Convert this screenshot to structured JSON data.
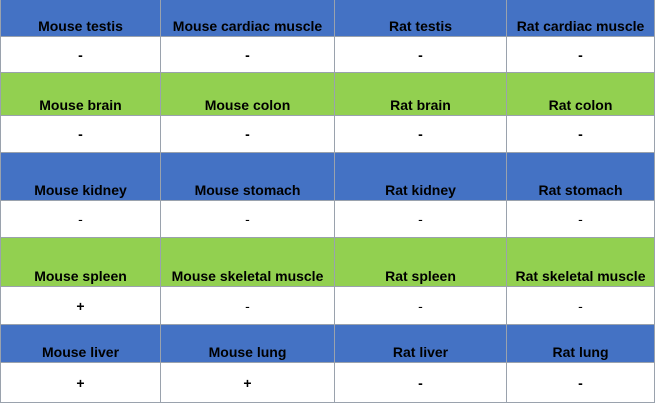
{
  "colors": {
    "blue": "#4472c4",
    "green": "#92d050",
    "white": "#ffffff"
  },
  "table": {
    "groups": [
      {
        "color": "blue",
        "labels": [
          "Mouse testis",
          "Mouse cardiac muscle",
          "Rat testis",
          "Rat cardiac muscle"
        ],
        "values": [
          "-",
          "-",
          "-",
          "-"
        ],
        "bold": [
          true,
          true,
          true,
          true
        ]
      },
      {
        "color": "green",
        "labels": [
          "Mouse brain",
          "Mouse colon",
          "Rat brain",
          "Rat colon"
        ],
        "values": [
          "-",
          "-",
          "-",
          "-"
        ],
        "bold": [
          true,
          true,
          true,
          true
        ]
      },
      {
        "color": "blue",
        "labels": [
          "Mouse kidney",
          "Mouse stomach",
          "Rat kidney",
          "Rat stomach"
        ],
        "values": [
          "-",
          "-",
          "-",
          "-"
        ],
        "bold": [
          false,
          false,
          false,
          false
        ]
      },
      {
        "color": "green",
        "labels": [
          "Mouse spleen",
          "Mouse skeletal muscle",
          "Rat spleen",
          "Rat skeletal muscle"
        ],
        "values": [
          "+",
          "-",
          "-",
          "-"
        ],
        "bold": [
          true,
          false,
          false,
          false
        ]
      },
      {
        "color": "blue",
        "labels": [
          "Mouse liver",
          "Mouse lung",
          "Rat liver",
          "Rat lung"
        ],
        "values": [
          "+",
          "+",
          "-",
          "-"
        ],
        "bold": [
          true,
          true,
          true,
          true
        ]
      }
    ]
  }
}
